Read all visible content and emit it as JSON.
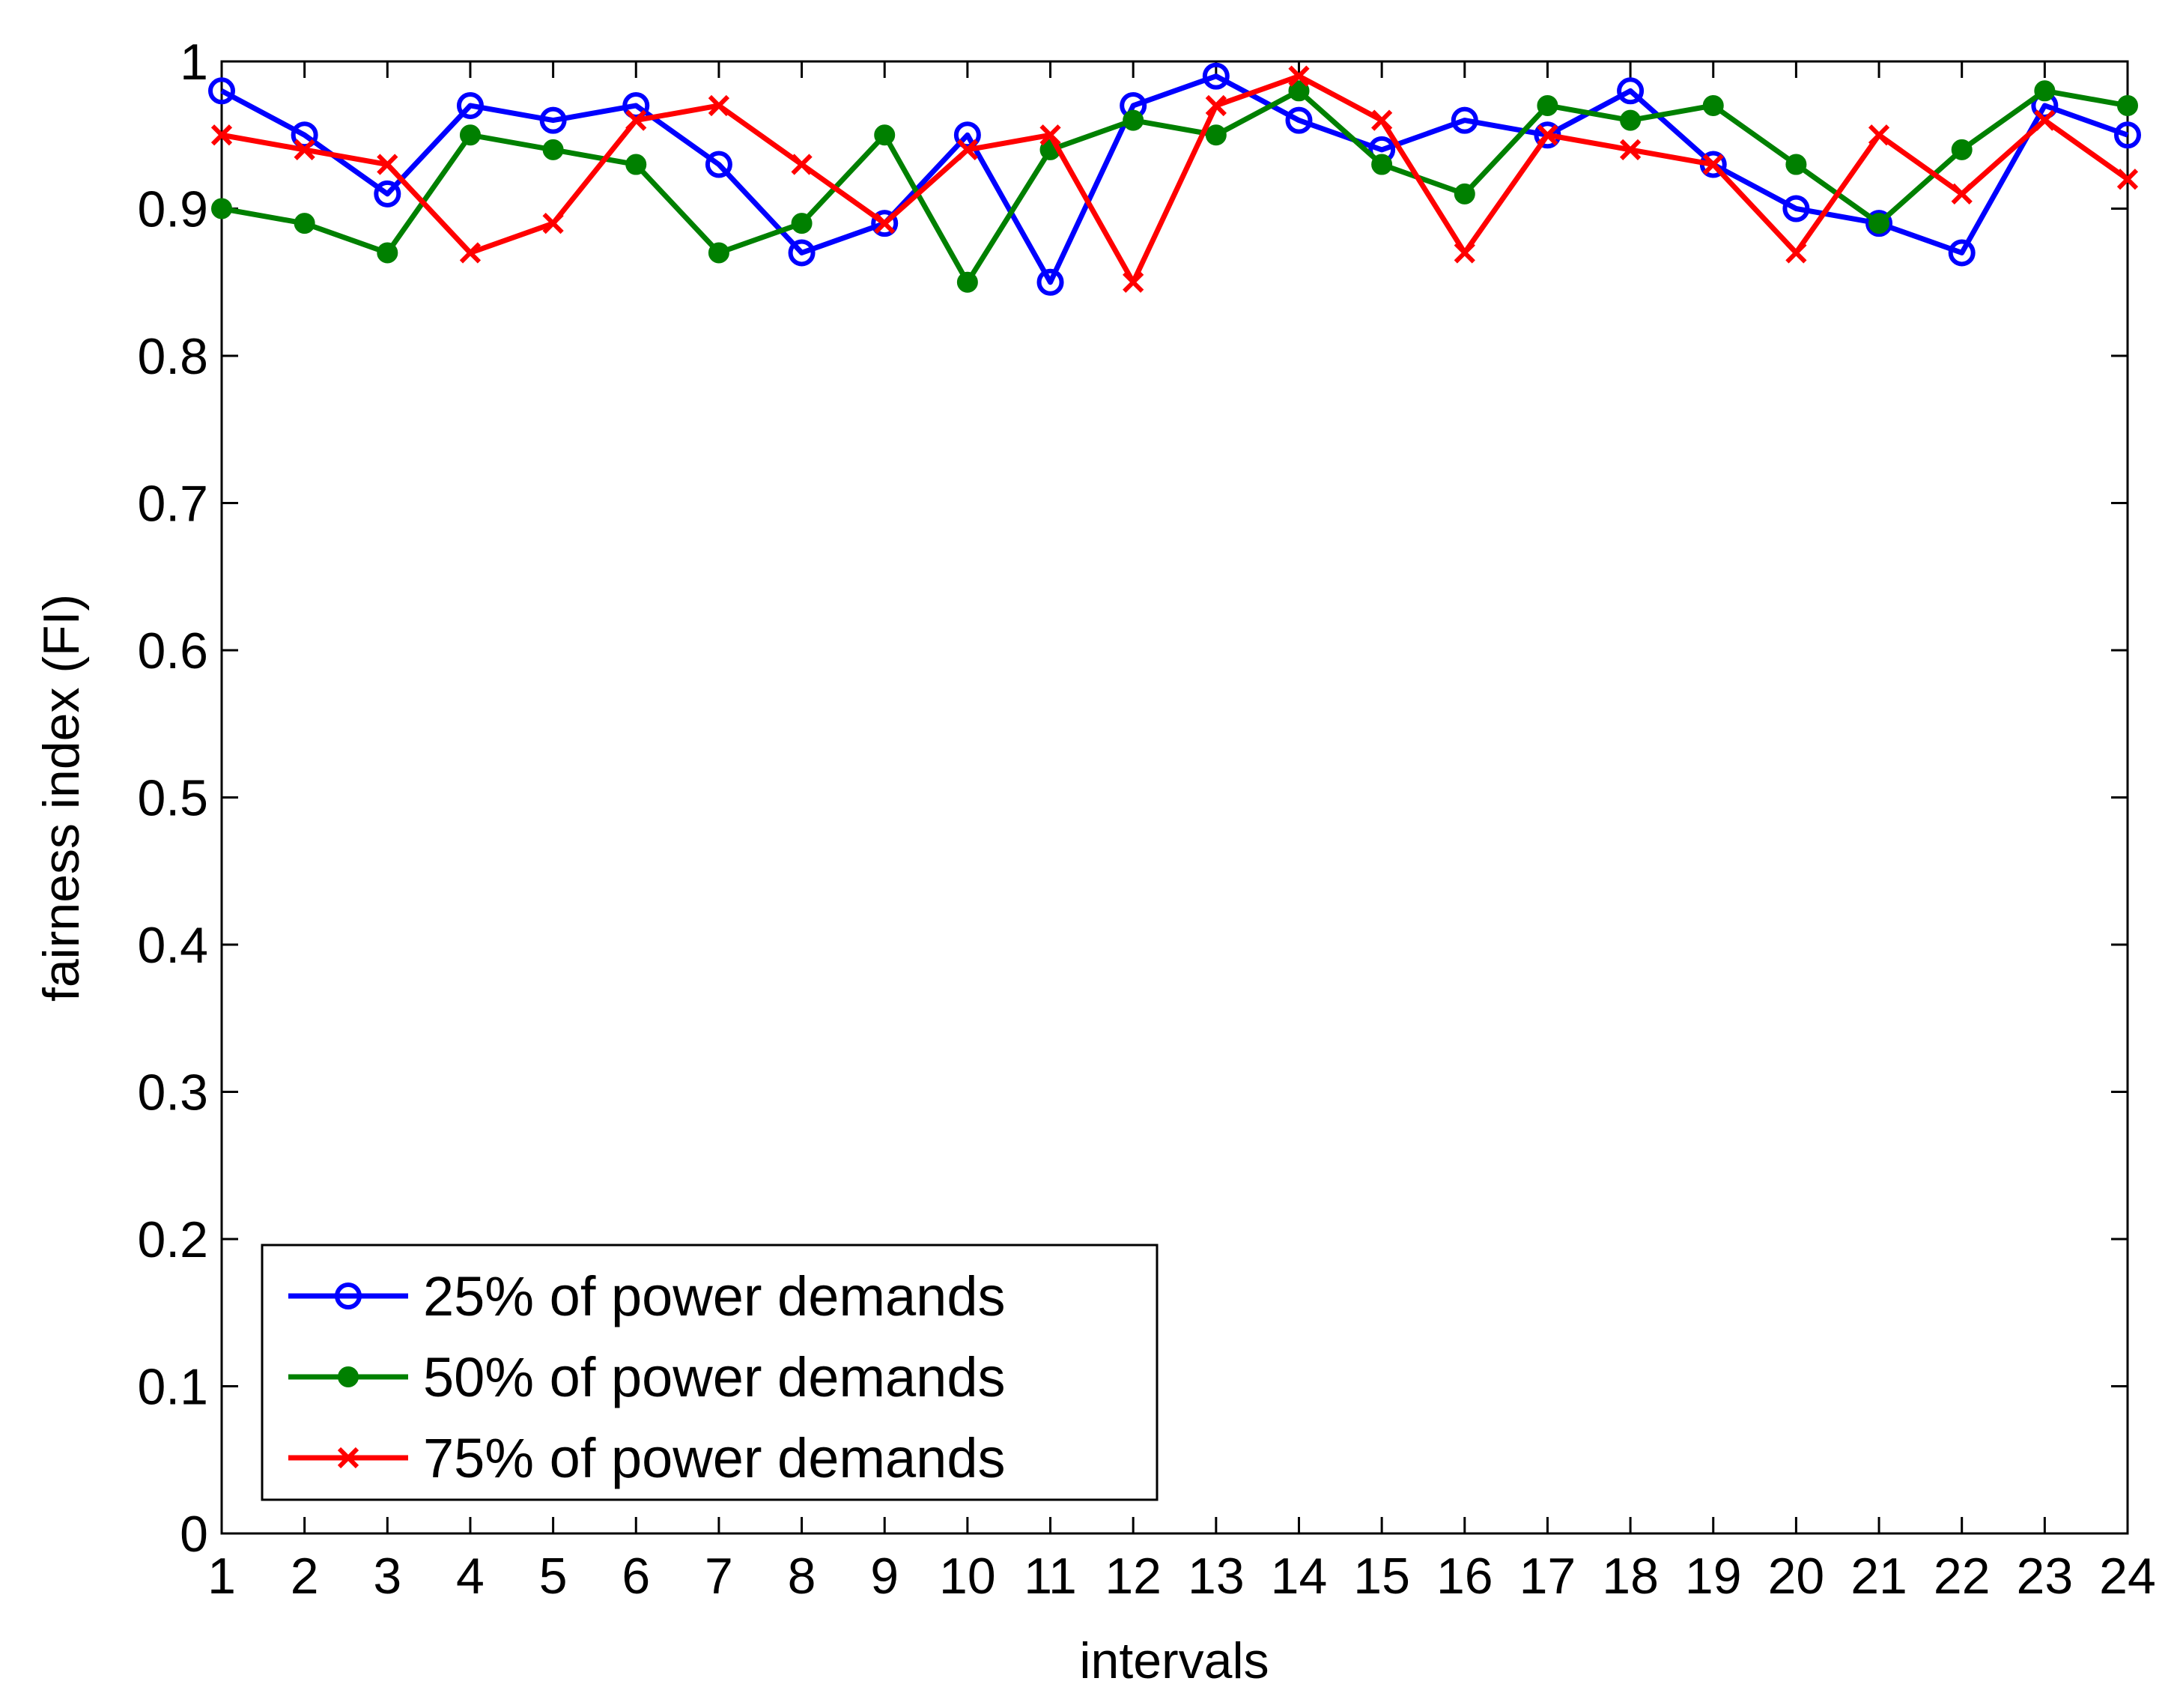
{
  "chart_data": {
    "type": "line",
    "xlabel": "intervals",
    "ylabel": "fairness index (FI)",
    "xlim": [
      1,
      24
    ],
    "ylim": [
      0,
      1
    ],
    "grid": false,
    "legend_position": "bottom-left",
    "x": [
      1,
      2,
      3,
      4,
      5,
      6,
      7,
      8,
      9,
      10,
      11,
      12,
      13,
      14,
      15,
      16,
      17,
      18,
      19,
      20,
      21,
      22,
      23,
      24
    ],
    "x_tick_labels": [
      "1",
      "2",
      "3",
      "4",
      "5",
      "6",
      "7",
      "8",
      "9",
      "10",
      "11",
      "12",
      "13",
      "14",
      "15",
      "16",
      "17",
      "18",
      "19",
      "20",
      "21",
      "22",
      "23",
      "24"
    ],
    "y_ticks": [
      0,
      0.1,
      0.2,
      0.3,
      0.4,
      0.5,
      0.6,
      0.7,
      0.8,
      0.9,
      1
    ],
    "y_tick_labels": [
      "0",
      "0.1",
      "0.2",
      "0.3",
      "0.4",
      "0.5",
      "0.6",
      "0.7",
      "0.8",
      "0.9",
      "1"
    ],
    "series": [
      {
        "name": "25% of power demands",
        "color": "#0000ff",
        "marker": "circle",
        "values": [
          0.98,
          0.95,
          0.91,
          0.97,
          0.96,
          0.97,
          0.93,
          0.87,
          0.89,
          0.95,
          0.85,
          0.97,
          0.99,
          0.96,
          0.94,
          0.96,
          0.95,
          0.98,
          0.93,
          0.9,
          0.89,
          0.87,
          0.97,
          0.95
        ]
      },
      {
        "name": "50% of power demands",
        "color": "#008000",
        "marker": "dot",
        "values": [
          0.9,
          0.89,
          0.87,
          0.95,
          0.94,
          0.93,
          0.87,
          0.89,
          0.95,
          0.85,
          0.94,
          0.96,
          0.95,
          0.98,
          0.93,
          0.91,
          0.97,
          0.96,
          0.97,
          0.93,
          0.89,
          0.94,
          0.98,
          0.97
        ]
      },
      {
        "name": "75% of power demands",
        "color": "#ff0000",
        "marker": "x",
        "values": [
          0.95,
          0.94,
          0.93,
          0.87,
          0.89,
          0.96,
          0.97,
          0.93,
          0.89,
          0.94,
          0.95,
          0.85,
          0.97,
          0.99,
          0.96,
          0.87,
          0.95,
          0.94,
          0.93,
          0.87,
          0.95,
          0.91,
          0.96,
          0.92
        ]
      }
    ]
  }
}
